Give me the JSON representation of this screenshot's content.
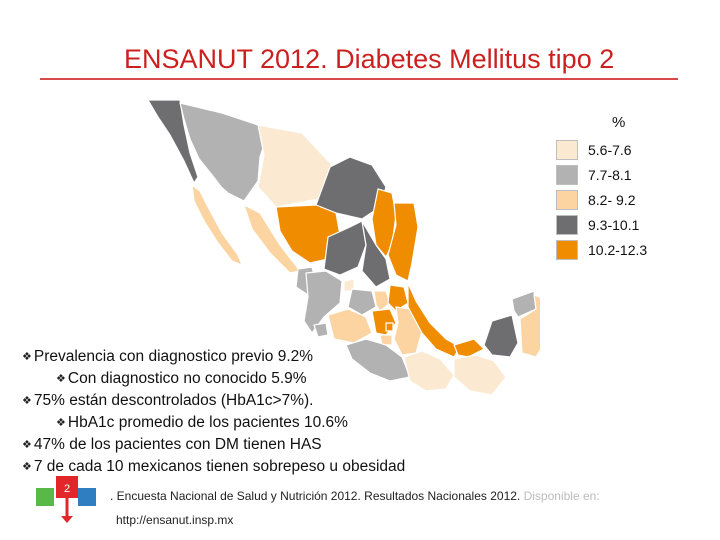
{
  "title": "ENSANUT 2012. Diabetes Mellitus tipo 2",
  "legend": {
    "title": "%",
    "items": [
      {
        "label": "5.6-7.6",
        "color": "#fce9d1"
      },
      {
        "label": "7.7-8.1",
        "color": "#b2b2b2"
      },
      {
        "label": "8.2- 9.2",
        "color": "#fbd4a2"
      },
      {
        "label": "9.3-10.1",
        "color": "#6e6e70"
      },
      {
        "label": "10.2-12.3",
        "color": "#ef8c00"
      }
    ]
  },
  "map": {
    "regions": [
      {
        "name": "Baja California",
        "class": 4
      },
      {
        "name": "Baja California Sur",
        "class": 3
      },
      {
        "name": "Sonora",
        "class": 2
      },
      {
        "name": "Chihuahua",
        "class": 1
      },
      {
        "name": "Coahuila",
        "class": 4
      },
      {
        "name": "Nuevo León",
        "class": 5
      },
      {
        "name": "Tamaulipas",
        "class": 5
      },
      {
        "name": "Sinaloa",
        "class": 3
      },
      {
        "name": "Durango",
        "class": 5
      },
      {
        "name": "Zacatecas",
        "class": 4
      },
      {
        "name": "San Luis Potosí",
        "class": 4
      },
      {
        "name": "Nayarit",
        "class": 2
      },
      {
        "name": "Jalisco",
        "class": 2
      },
      {
        "name": "Aguascalientes",
        "class": 1
      },
      {
        "name": "Guanajuato",
        "class": 2
      },
      {
        "name": "Querétaro",
        "class": 3
      },
      {
        "name": "Hidalgo",
        "class": 5
      },
      {
        "name": "Colima",
        "class": 2
      },
      {
        "name": "Michoacán",
        "class": 3
      },
      {
        "name": "Estado de México",
        "class": 5
      },
      {
        "name": "Ciudad de México",
        "class": 5
      },
      {
        "name": "Morelos",
        "class": 3
      },
      {
        "name": "Tlaxcala",
        "class": 3
      },
      {
        "name": "Puebla",
        "class": 3
      },
      {
        "name": "Veracruz",
        "class": 5
      },
      {
        "name": "Guerrero",
        "class": 2
      },
      {
        "name": "Oaxaca",
        "class": 1
      },
      {
        "name": "Tabasco",
        "class": 5
      },
      {
        "name": "Chiapas",
        "class": 1
      },
      {
        "name": "Campeche",
        "class": 4
      },
      {
        "name": "Yucatán",
        "class": 2
      },
      {
        "name": "Quintana Roo",
        "class": 3
      }
    ]
  },
  "bullets": [
    {
      "level": 1,
      "text": "Prevalencia con diagnostico previo 9.2%"
    },
    {
      "level": 2,
      "text": "Con diagnostico no conocido 5.9%"
    },
    {
      "level": 1,
      "text": "75% están descontrolados (HbA1c>7%)."
    },
    {
      "level": 2,
      "text": "HbA1c promedio de los pacientes 10.6%"
    },
    {
      "level": 1,
      "text": "47% de los pacientes con DM tienen HAS"
    },
    {
      "level": 1,
      "text": "7 de cada 10 mexicanos tienen sobrepeso u obesidad"
    }
  ],
  "bullet_mark": "❖",
  "logo_number": "2",
  "citation": {
    "text": ". Encuesta Nacional de Salud y Nutrición 2012. Resultados Nacionales 2012.",
    "faded": " Disponible en:",
    "url": "http://ensanut.insp.mx"
  }
}
